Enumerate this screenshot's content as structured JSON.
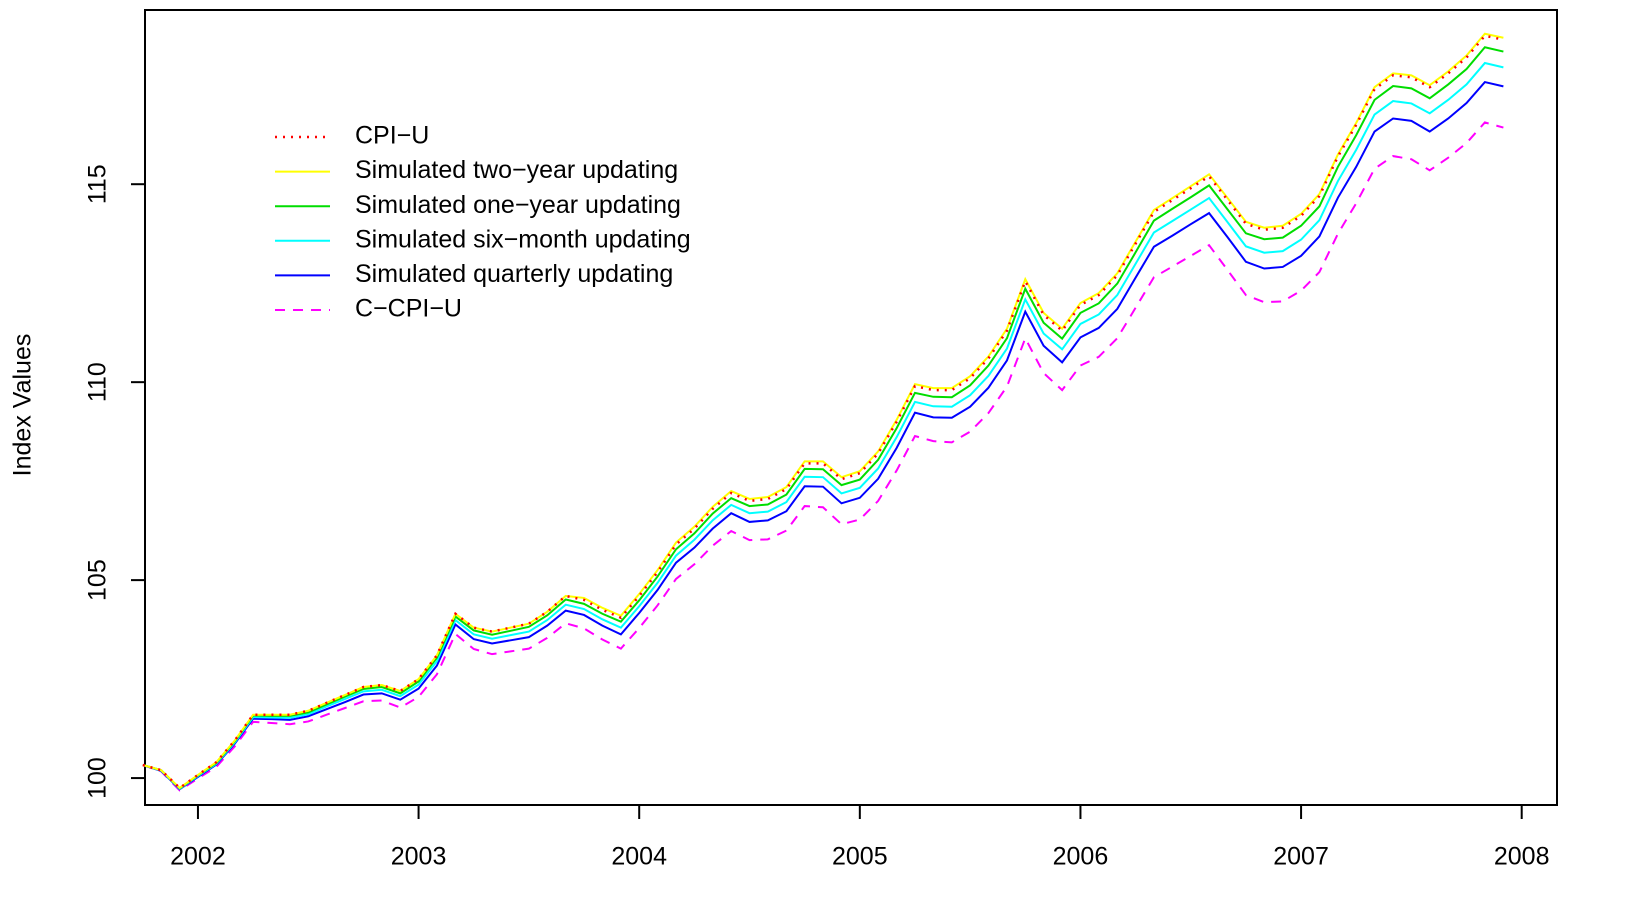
{
  "chart_data": {
    "type": "line",
    "y_label": "Index Values",
    "xlim": [
      2001.76,
      2008.16
    ],
    "ylim": [
      99.32,
      119.4
    ],
    "xticks": [
      2002,
      2003,
      2004,
      2005,
      2006,
      2007,
      2008
    ],
    "yticks": [
      100,
      105,
      110,
      115
    ],
    "legend": "top-left",
    "x": [
      2001.75,
      2001.833,
      2001.917,
      2002,
      2002.083,
      2002.167,
      2002.25,
      2002.333,
      2002.417,
      2002.5,
      2002.583,
      2002.667,
      2002.75,
      2002.833,
      2002.917,
      2003,
      2003.083,
      2003.167,
      2003.25,
      2003.333,
      2003.417,
      2003.5,
      2003.583,
      2003.667,
      2003.75,
      2003.833,
      2003.917,
      2004,
      2004.083,
      2004.167,
      2004.25,
      2004.333,
      2004.417,
      2004.5,
      2004.583,
      2004.667,
      2004.75,
      2004.833,
      2004.917,
      2005,
      2005.083,
      2005.167,
      2005.25,
      2005.333,
      2005.417,
      2005.5,
      2005.583,
      2005.667,
      2005.75,
      2005.833,
      2005.917,
      2006,
      2006.083,
      2006.167,
      2006.25,
      2006.333,
      2006.417,
      2006.5,
      2006.583,
      2006.667,
      2006.75,
      2006.833,
      2006.917,
      2007,
      2007.083,
      2007.167,
      2007.25,
      2007.333,
      2007.417,
      2007.5,
      2007.583,
      2007.667,
      2007.75,
      2007.833,
      2007.917
    ],
    "series": [
      {
        "name": "CPI−U",
        "color": "#ff0000",
        "linestyle": "dotted",
        "values": [
          100.33,
          100.2,
          99.75,
          100.08,
          100.4,
          100.95,
          101.6,
          101.6,
          101.6,
          101.7,
          101.9,
          102.1,
          102.3,
          102.35,
          102.2,
          102.5,
          103.1,
          104.15,
          103.8,
          103.7,
          103.8,
          103.9,
          104.2,
          104.6,
          104.5,
          104.25,
          104.05,
          104.6,
          105.2,
          105.9,
          106.3,
          106.8,
          107.2,
          107.0,
          107.05,
          107.3,
          107.95,
          107.95,
          107.55,
          107.7,
          108.2,
          109.0,
          109.9,
          109.8,
          109.8,
          110.1,
          110.6,
          111.3,
          112.55,
          111.7,
          111.3,
          111.95,
          112.2,
          112.7,
          113.5,
          114.3,
          114.6,
          114.9,
          115.2,
          114.6,
          114.0,
          113.85,
          113.9,
          114.2,
          114.7,
          115.7,
          116.5,
          117.4,
          117.75,
          117.7,
          117.45,
          117.8,
          118.2,
          118.75,
          118.65
        ]
      },
      {
        "name": "Simulated two−year updating",
        "color": "#ffff00",
        "linestyle": "solid",
        "values": [
          100.33,
          100.2,
          99.75,
          100.08,
          100.4,
          100.95,
          101.6,
          101.6,
          101.6,
          101.7,
          101.9,
          102.1,
          102.3,
          102.35,
          102.2,
          102.5,
          103.1,
          104.15,
          103.8,
          103.7,
          103.8,
          103.9,
          104.2,
          104.6,
          104.55,
          104.3,
          104.1,
          104.65,
          105.25,
          105.95,
          106.35,
          106.85,
          107.25,
          107.05,
          107.1,
          107.35,
          108.0,
          108.0,
          107.6,
          107.75,
          108.25,
          109.05,
          109.95,
          109.85,
          109.85,
          110.15,
          110.65,
          111.35,
          112.6,
          111.75,
          111.35,
          112.0,
          112.25,
          112.75,
          113.55,
          114.35,
          114.65,
          114.95,
          115.25,
          114.65,
          114.05,
          113.9,
          113.95,
          114.25,
          114.75,
          115.75,
          116.55,
          117.45,
          117.8,
          117.75,
          117.5,
          117.85,
          118.25,
          118.8,
          118.7
        ]
      },
      {
        "name": "Simulated one−year updating",
        "color": "#00dd00",
        "linestyle": "solid",
        "values": [
          100.33,
          100.2,
          99.74,
          100.07,
          100.38,
          100.93,
          101.58,
          101.57,
          101.57,
          101.66,
          101.86,
          102.06,
          102.25,
          102.3,
          102.14,
          102.44,
          103.04,
          104.08,
          103.73,
          103.62,
          103.72,
          103.82,
          104.11,
          104.51,
          104.4,
          104.15,
          103.95,
          104.49,
          105.09,
          105.78,
          106.18,
          106.68,
          107.07,
          106.87,
          106.91,
          107.16,
          107.81,
          107.8,
          107.4,
          107.54,
          108.04,
          108.84,
          109.73,
          109.63,
          109.62,
          109.92,
          110.42,
          111.11,
          112.36,
          111.5,
          111.1,
          111.75,
          111.99,
          112.49,
          113.28,
          114.08,
          114.38,
          114.67,
          114.97,
          114.36,
          113.76,
          113.61,
          113.65,
          113.95,
          114.44,
          115.44,
          116.24,
          117.13,
          117.48,
          117.42,
          117.17,
          117.52,
          117.91,
          118.46,
          118.35
        ]
      },
      {
        "name": "Simulated six−month updating",
        "color": "#00ffff",
        "linestyle": "solid",
        "values": [
          100.33,
          100.19,
          99.73,
          100.05,
          100.36,
          100.9,
          101.54,
          101.53,
          101.52,
          101.61,
          101.81,
          102.0,
          102.19,
          102.23,
          102.07,
          102.36,
          102.95,
          103.99,
          103.63,
          103.52,
          103.61,
          103.7,
          103.99,
          104.38,
          104.27,
          104.01,
          103.8,
          104.34,
          104.93,
          105.62,
          106.02,
          106.51,
          106.9,
          106.69,
          106.73,
          106.97,
          107.61,
          107.6,
          107.19,
          107.33,
          107.82,
          108.61,
          109.5,
          109.39,
          109.38,
          109.67,
          110.16,
          110.85,
          112.09,
          111.23,
          110.83,
          111.47,
          111.71,
          112.2,
          112.99,
          113.78,
          114.07,
          114.36,
          114.65,
          114.04,
          113.43,
          113.27,
          113.31,
          113.6,
          114.09,
          115.08,
          115.87,
          116.76,
          117.1,
          117.04,
          116.79,
          117.13,
          117.52,
          118.06,
          117.95
        ]
      },
      {
        "name": "Simulated quarterly updating",
        "color": "#0000ff",
        "linestyle": "solid",
        "values": [
          100.33,
          100.18,
          99.72,
          100.03,
          100.34,
          100.87,
          101.5,
          101.49,
          101.47,
          101.56,
          101.74,
          101.92,
          102.11,
          102.14,
          101.98,
          102.26,
          102.84,
          103.88,
          103.51,
          103.4,
          103.48,
          103.56,
          103.85,
          104.23,
          104.12,
          103.85,
          103.63,
          104.17,
          104.75,
          105.44,
          105.82,
          106.3,
          106.69,
          106.47,
          106.51,
          106.74,
          107.37,
          107.36,
          106.94,
          107.08,
          107.56,
          108.34,
          109.23,
          109.11,
          109.1,
          109.38,
          109.86,
          110.55,
          111.78,
          110.92,
          110.5,
          111.13,
          111.37,
          111.85,
          112.64,
          113.42,
          113.7,
          113.99,
          114.27,
          113.66,
          113.04,
          112.87,
          112.91,
          113.19,
          113.68,
          114.66,
          115.44,
          116.33,
          116.66,
          116.6,
          116.33,
          116.66,
          117.05,
          117.58,
          117.47
        ]
      },
      {
        "name": "C−CPI−U",
        "color": "#ff00ff",
        "linestyle": "dashed",
        "values": [
          100.33,
          100.17,
          99.69,
          99.99,
          100.28,
          100.8,
          101.42,
          101.39,
          101.36,
          101.43,
          101.6,
          101.77,
          101.94,
          101.96,
          101.78,
          102.05,
          102.62,
          103.64,
          103.26,
          103.13,
          103.2,
          103.27,
          103.54,
          103.91,
          103.78,
          103.5,
          103.27,
          103.79,
          104.36,
          105.03,
          105.4,
          105.87,
          106.24,
          106.01,
          106.03,
          106.25,
          106.87,
          106.84,
          106.41,
          106.53,
          107.0,
          107.77,
          108.64,
          108.51,
          108.48,
          108.75,
          109.22,
          109.89,
          111.11,
          110.23,
          109.8,
          110.42,
          110.64,
          111.11,
          111.88,
          112.65,
          112.92,
          113.19,
          113.46,
          112.83,
          112.2,
          112.02,
          112.04,
          112.31,
          112.78,
          113.75,
          114.52,
          115.39,
          115.71,
          115.63,
          115.35,
          115.67,
          116.04,
          116.56,
          116.43
        ]
      }
    ]
  }
}
